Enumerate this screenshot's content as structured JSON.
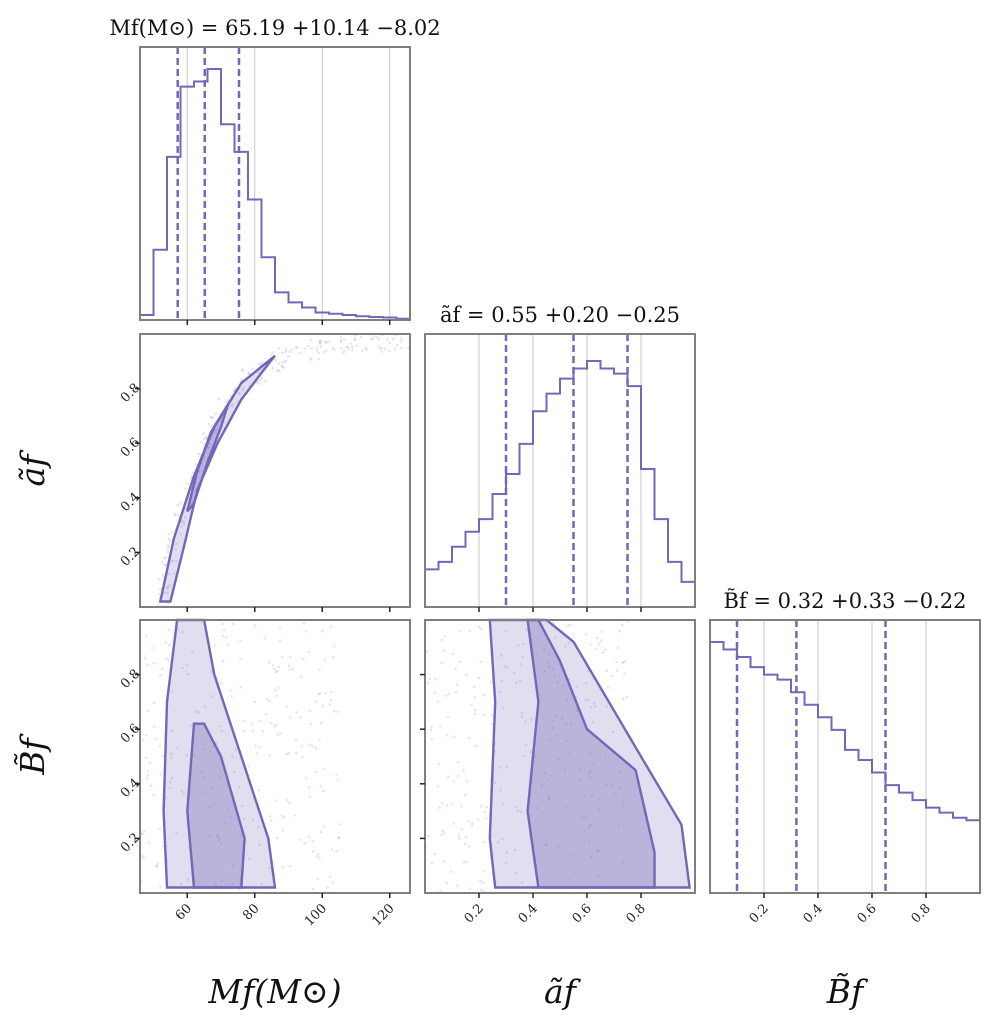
{
  "chart_data": {
    "type": "corner",
    "colors": {
      "accent": "#7267b8",
      "frame": "#7f7f7f",
      "grid": "#c8c8c8",
      "text": "#111111"
    },
    "parameters": [
      {
        "label": "Mf(M⊙)",
        "title": "Mf(M⊙) = 65.19 +10.14 −8.02",
        "median": 65.19,
        "plus": 10.14,
        "minus": 8.02,
        "range": [
          46,
          126
        ],
        "ticks": [
          60,
          80,
          100,
          120
        ]
      },
      {
        "label": "ãf",
        "title": "ãf = 0.55 +0.20 −0.25",
        "median": 0.55,
        "plus": 0.2,
        "minus": 0.25,
        "range": [
          0.0,
          1.0
        ],
        "ticks": [
          0.2,
          0.4,
          0.6,
          0.8
        ]
      },
      {
        "label": "B̃f",
        "title": "B̃f = 0.32 +0.33 −0.22",
        "median": 0.32,
        "plus": 0.33,
        "minus": 0.22,
        "range": [
          0.0,
          1.0
        ],
        "ticks": [
          0.2,
          0.4,
          0.6,
          0.8
        ]
      }
    ],
    "histograms": {
      "Mf(M⊙)": {
        "bin_edges": [
          46,
          50,
          54,
          58,
          62,
          66,
          70,
          74,
          78,
          82,
          86,
          90,
          94,
          98,
          102,
          106,
          110,
          114,
          118,
          122,
          126
        ],
        "density": [
          0.02,
          0.28,
          0.65,
          0.93,
          0.95,
          1.0,
          0.78,
          0.67,
          0.48,
          0.25,
          0.11,
          0.07,
          0.05,
          0.03,
          0.025,
          0.02,
          0.015,
          0.012,
          0.01,
          0.005
        ]
      },
      "ãf": {
        "bin_edges": [
          0.0,
          0.05,
          0.1,
          0.15,
          0.2,
          0.25,
          0.3,
          0.35,
          0.4,
          0.45,
          0.5,
          0.55,
          0.6,
          0.65,
          0.7,
          0.75,
          0.8,
          0.85,
          0.9,
          0.95,
          1.0
        ],
        "density": [
          0.15,
          0.18,
          0.24,
          0.3,
          0.35,
          0.45,
          0.53,
          0.65,
          0.78,
          0.85,
          0.91,
          0.95,
          0.98,
          0.95,
          0.93,
          0.88,
          0.55,
          0.35,
          0.18,
          0.1
        ]
      },
      "B̃f": {
        "bin_edges": [
          0.0,
          0.05,
          0.1,
          0.15,
          0.2,
          0.25,
          0.3,
          0.35,
          0.4,
          0.45,
          0.5,
          0.55,
          0.6,
          0.65,
          0.7,
          0.75,
          0.8,
          0.85,
          0.9,
          0.95,
          1.0
        ],
        "density": [
          1.0,
          0.97,
          0.94,
          0.9,
          0.87,
          0.85,
          0.8,
          0.75,
          0.7,
          0.65,
          0.57,
          0.53,
          0.48,
          0.43,
          0.4,
          0.37,
          0.34,
          0.32,
          0.3,
          0.29
        ]
      }
    },
    "density_2d": [
      {
        "x": "Mf(M⊙)",
        "y": "ãf",
        "outer_contour": [
          [
            52,
            0.02
          ],
          [
            56,
            0.25
          ],
          [
            62,
            0.48
          ],
          [
            68,
            0.66
          ],
          [
            76,
            0.82
          ],
          [
            86,
            0.92
          ],
          [
            84,
            0.89
          ],
          [
            76,
            0.76
          ],
          [
            69,
            0.6
          ],
          [
            63,
            0.43
          ],
          [
            59,
            0.22
          ],
          [
            55,
            0.02
          ]
        ],
        "inner_contour": [
          [
            60,
            0.35
          ],
          [
            63,
            0.5
          ],
          [
            67,
            0.64
          ],
          [
            72,
            0.74
          ],
          [
            70,
            0.66
          ],
          [
            66,
            0.53
          ],
          [
            62,
            0.38
          ]
        ],
        "scatter_band": [
          [
            52,
            0.02
          ],
          [
            56,
            0.25
          ],
          [
            62,
            0.48
          ],
          [
            68,
            0.66
          ],
          [
            76,
            0.82
          ],
          [
            88,
            0.92
          ],
          [
            104,
            0.96
          ],
          [
            126,
            0.98
          ]
        ]
      },
      {
        "x": "Mf(M⊙)",
        "y": "B̃f",
        "outer_contour": [
          [
            57,
            1.0
          ],
          [
            54,
            0.7
          ],
          [
            53,
            0.3
          ],
          [
            54,
            0.02
          ],
          [
            86,
            0.02
          ],
          [
            84,
            0.2
          ],
          [
            76,
            0.5
          ],
          [
            68,
            0.8
          ],
          [
            65,
            1.0
          ]
        ],
        "inner_contour": [
          [
            62,
            0.62
          ],
          [
            60,
            0.3
          ],
          [
            62,
            0.02
          ],
          [
            76,
            0.02
          ],
          [
            77,
            0.2
          ],
          [
            70,
            0.5
          ],
          [
            65,
            0.62
          ]
        ]
      },
      {
        "x": "ãf",
        "y": "B̃f",
        "outer_contour": [
          [
            0.24,
            1.0
          ],
          [
            0.26,
            0.7
          ],
          [
            0.24,
            0.2
          ],
          [
            0.26,
            0.02
          ],
          [
            0.98,
            0.02
          ],
          [
            0.95,
            0.25
          ],
          [
            0.8,
            0.5
          ],
          [
            0.55,
            0.92
          ],
          [
            0.45,
            1.0
          ]
        ],
        "inner_contour": [
          [
            0.38,
            1.0
          ],
          [
            0.42,
            0.7
          ],
          [
            0.38,
            0.3
          ],
          [
            0.42,
            0.02
          ],
          [
            0.85,
            0.02
          ],
          [
            0.85,
            0.15
          ],
          [
            0.78,
            0.45
          ],
          [
            0.6,
            0.6
          ],
          [
            0.5,
            0.85
          ],
          [
            0.42,
            1.0
          ]
        ]
      }
    ]
  }
}
